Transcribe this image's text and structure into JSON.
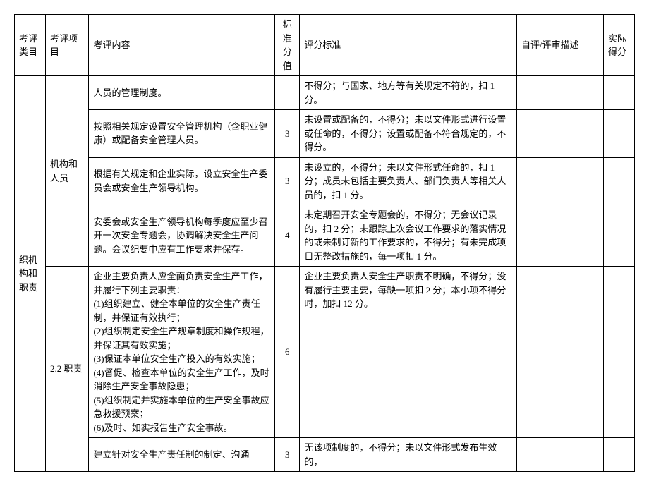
{
  "headers": {
    "category": "考评类目",
    "item": "考评项目",
    "content": "考评内容",
    "stdScore": "标准分值",
    "criteria": "评分标准",
    "self": "自评/评审描述",
    "actual": "实际得分"
  },
  "categoryLabel": "织机构和职责",
  "item1Label": "机构和人员",
  "item2Label": "2.2 职责",
  "rows": [
    {
      "content": "人员的管理制度。",
      "score": "",
      "criteria": "不得分；与国家、地方等有关规定不符的，扣 1 分。"
    },
    {
      "content": "按照相关规定设置安全管理机构（含职业健康）或配备安全管理人员。",
      "score": "3",
      "criteria": "未设置或配备的，不得分；未以文件形式进行设置或任命的，不得分；设置或配备不符合规定的，不得分。"
    },
    {
      "content": "根据有关规定和企业实际，设立安全生产委员会或安全生产领导机构。",
      "score": "3",
      "criteria": "未设立的，不得分；未以文件形式任命的，扣 1 分；成员未包括主要负责人、部门负责人等相关人员的，扣 1 分。"
    },
    {
      "content": "安委会或安全生产领导机构每季度应至少召开一次安全专题会，协调解决安全生产问题。会议纪要中应有工作要求并保存。",
      "score": "4",
      "criteria": "未定期召开安全专题会的，不得分；无会议记录的，扣 2 分；未跟踪上次会议工作要求的落实情况的或未制订新的工作要求的，不得分；有未完成项目无整改措施的，每一项扣 1 分。"
    },
    {
      "content": "企业主要负责人应全面负责安全生产工作，并履行下列主要职责：\n(1)组织建立、健全本单位的安全生产责任制，并保证有效执行；\n(2)组织制定安全生产规章制度和操作规程，并保证其有效实施；\n(3)保证本单位安全生产投入的有效实施；\n(4)督促、检查本单位的安全生产工作，及时消除生产安全事故隐患；\n(5)组织制定并实施本单位的生产安全事故应急救援预案；\n(6)及时、如实报告生产安全事故。",
      "score": "6",
      "criteria": "企业主要负责人安全生产职责不明确，不得分；没有履行主要主要，每缺一项扣 2 分；本小项不得分时，加扣 12 分。"
    },
    {
      "content": "建立针对安全生产责任制的制定、沟通",
      "score": "3",
      "criteria": "无该项制度的，不得分；未以文件形式发布生效的，"
    }
  ]
}
